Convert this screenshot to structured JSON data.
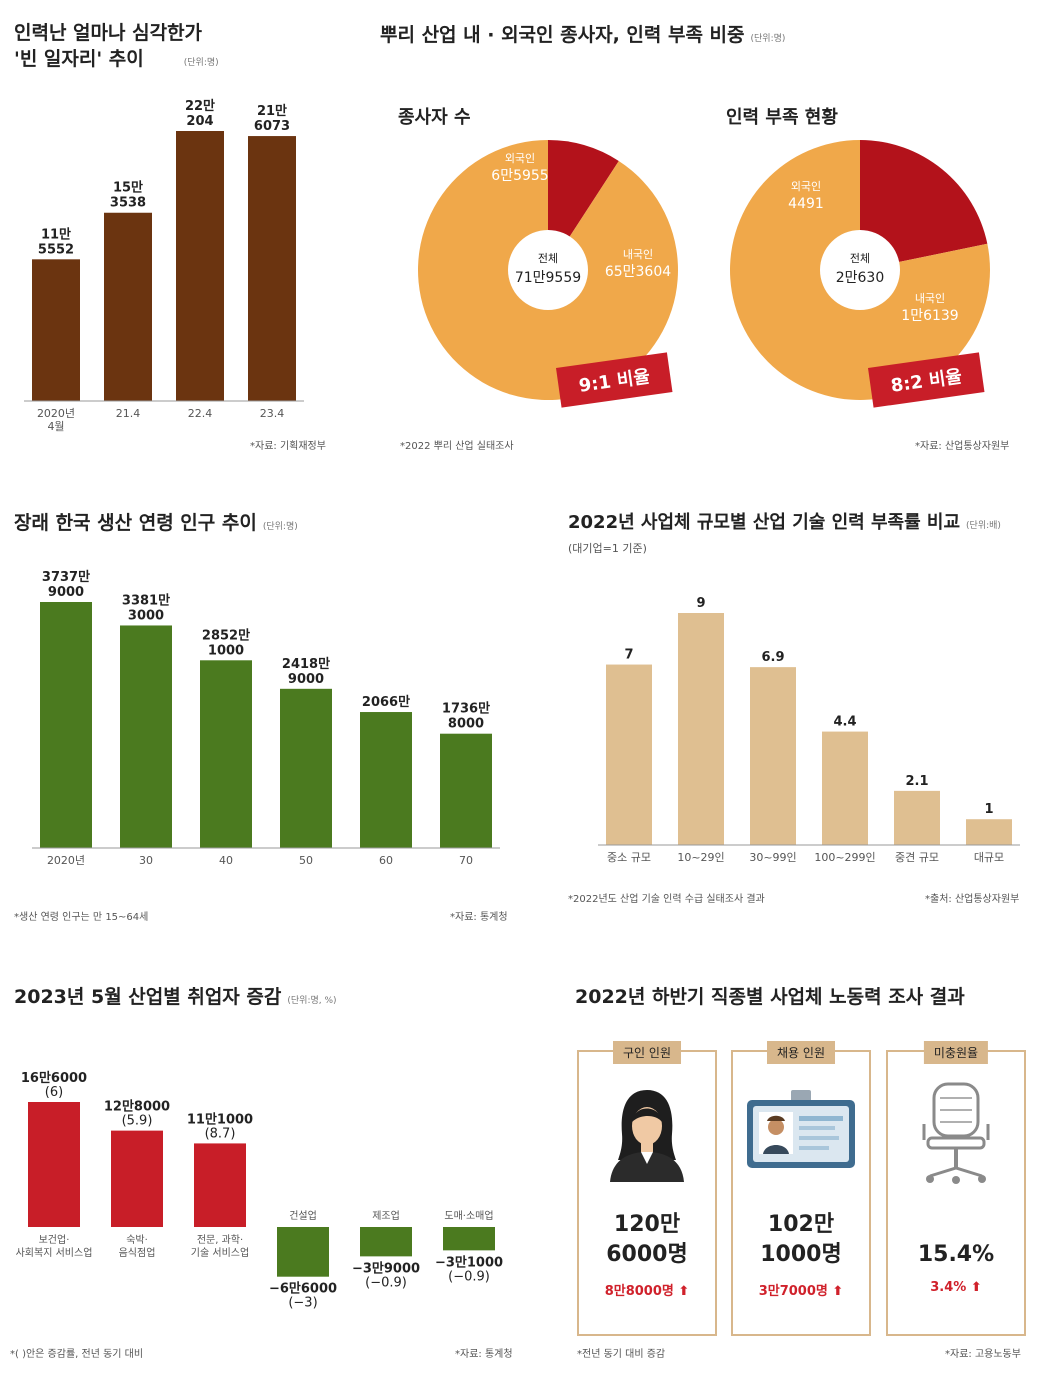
{
  "panel1": {
    "title_line1": "인력난 얼마나 심각한가",
    "title_line2": "'빈 일자리' 추이",
    "unit": "(단위:명)",
    "source": "*자료: 기획재정부"
  },
  "panel2": {
    "title": "뿌리 산업 내 · 외국인 종사자, 인력 부족 비중",
    "unit": "(단위:명)",
    "source_left": "*2022 뿌리 산업 실태조사",
    "source_right": "*자료: 산업통상자원부",
    "donut1": {
      "title": "종사자 수",
      "center_label": "전체",
      "center_value": "71만9559",
      "foreign_label": "외국인",
      "foreign_value": "6만5955",
      "domestic_label": "내국인",
      "domestic_value": "65만3604",
      "ratio": "9:1 비율"
    },
    "donut2": {
      "title": "인력 부족 현황",
      "center_label": "전체",
      "center_value": "2만630",
      "foreign_label": "외국인",
      "foreign_value": "4491",
      "domestic_label": "내국인",
      "domestic_value": "1만6139",
      "ratio": "8:2 비율"
    }
  },
  "panel3": {
    "title": "장래 한국 생산 연령 인구 추이",
    "unit": "(단위:명)",
    "note": "*생산 연령 인구는 만 15~64세",
    "source": "*자료: 통계청"
  },
  "panel4": {
    "title": "2022년 사업체 규모별 산업 기술 인력 부족률 비교",
    "unit": "(단위:배)",
    "subtitle": "(대기업=1 기준)",
    "note": "*2022년도 산업 기술 인력 수급 실태조사 결과",
    "source": "*출처: 산업통상자원부"
  },
  "panel5": {
    "title": "2023년 5월 산업별 취업자 증감",
    "unit": "(단위:명, %)",
    "note": "*( )안은 증감률, 전년 동기 대비",
    "source": "*자료: 통계청"
  },
  "panel6": {
    "title": "2022년 하반기 직종별 사업체 노동력 조사 결과",
    "note": "*전년 동기 대비 증감",
    "source": "*자료: 고용노동부",
    "cards": [
      {
        "tab": "구인 인원",
        "icon": "person-icon",
        "value_line1": "120만",
        "value_line2": "6000명",
        "change": "8만8000명"
      },
      {
        "tab": "채용 인원",
        "icon": "id-card-icon",
        "value_line1": "102만",
        "value_line2": "1000명",
        "change": "3만7000명"
      },
      {
        "tab": "미충원율",
        "icon": "chair-icon",
        "value_line1": "",
        "value_line2": "15.4%",
        "change": "3.4%"
      }
    ]
  },
  "colors": {
    "brown": "#6b3410",
    "green": "#4b7a1f",
    "tan": "#dfbf91",
    "red": "#c81e28",
    "orange": "#f0a84a",
    "dark_red": "#b3121b"
  },
  "chart_data": [
    {
      "type": "bar",
      "id": "vacancy",
      "categories": [
        "2020년 4월",
        "21.4",
        "22.4",
        "23.4"
      ],
      "values": [
        115552,
        153538,
        220204,
        216073
      ],
      "labels": [
        [
          "11만",
          "5552"
        ],
        [
          "15만",
          "3538"
        ],
        [
          "22만",
          "204"
        ],
        [
          "21만",
          "6073"
        ]
      ]
    },
    {
      "type": "pie",
      "id": "workers",
      "slices": [
        {
          "name": "외국인",
          "value": 65955
        },
        {
          "name": "내국인",
          "value": 653604
        }
      ]
    },
    {
      "type": "pie",
      "id": "shortage",
      "slices": [
        {
          "name": "외국인",
          "value": 4491
        },
        {
          "name": "내국인",
          "value": 16139
        }
      ]
    },
    {
      "type": "bar",
      "id": "population",
      "categories": [
        "2020년",
        "30",
        "40",
        "50",
        "60",
        "70"
      ],
      "values": [
        37379000,
        33813000,
        28521000,
        24189000,
        20660000,
        17368000
      ],
      "labels": [
        [
          "3737만",
          "9000"
        ],
        [
          "3381만",
          "3000"
        ],
        [
          "2852만",
          "1000"
        ],
        [
          "2418만",
          "9000"
        ],
        [
          "2066만",
          ""
        ],
        [
          "1736만",
          "8000"
        ]
      ]
    },
    {
      "type": "bar",
      "id": "shortage_rate",
      "categories": [
        "중소 규모",
        "10~29인",
        "30~99인",
        "100~299인",
        "중견 규모",
        "대규모"
      ],
      "values": [
        7,
        9,
        6.9,
        4.4,
        2.1,
        1
      ],
      "labels": [
        "7",
        "9",
        "6.9",
        "4.4",
        "2.1",
        "1"
      ]
    },
    {
      "type": "bar",
      "id": "employment_change",
      "categories": [
        "보건업·사회복지 서비스업",
        "숙박·음식점업",
        "전문, 과학·기술 서비스업",
        "건설업",
        "제조업",
        "도매·소매업"
      ],
      "category_lines": [
        [
          "보건업·",
          "사회복지 서비스업"
        ],
        [
          "숙박·",
          "음식점업"
        ],
        [
          "전문, 과학·",
          "기술 서비스업"
        ],
        [
          "건설업"
        ],
        [
          "제조업"
        ],
        [
          "도매·소매업"
        ]
      ],
      "values": [
        166000,
        128000,
        111000,
        -66000,
        -39000,
        -31000
      ],
      "rates": [
        6,
        5.9,
        8.7,
        -3,
        -0.9,
        -0.9
      ],
      "labels": [
        [
          "16만6000",
          "(6)"
        ],
        [
          "12만8000",
          "(5.9)"
        ],
        [
          "11만1000",
          "(8.7)"
        ],
        [
          "−6만6000",
          "(−3)"
        ],
        [
          "−3만9000",
          "(−0.9)"
        ],
        [
          "−3만1000",
          "(−0.9)"
        ]
      ]
    }
  ]
}
